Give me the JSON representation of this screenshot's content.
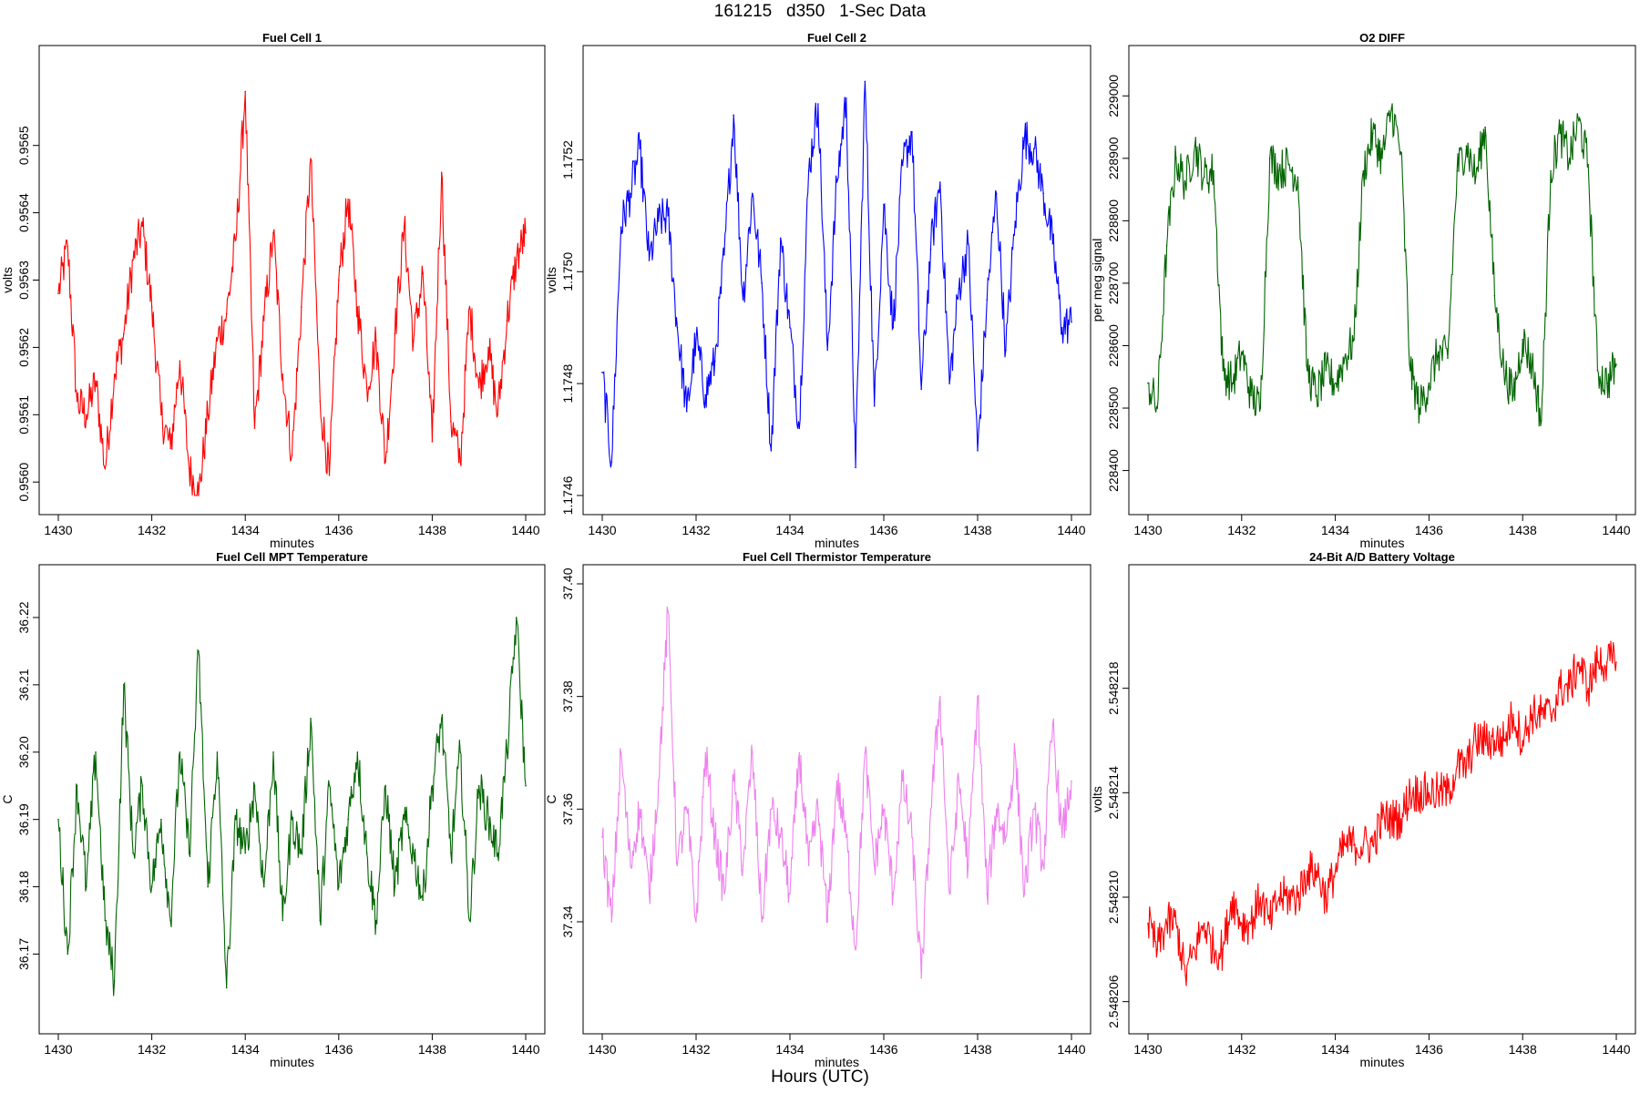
{
  "page": {
    "title": "161215   d350   1-Sec Data",
    "bottom_label": "Hours (UTC)"
  },
  "chart_data": [
    {
      "type": "line",
      "title": "Fuel Cell 1",
      "xlabel": "minutes",
      "ylabel": "volts",
      "color": "#ff0000",
      "xlim": [
        1430,
        1440
      ],
      "ylim": [
        0.95598,
        0.95662
      ],
      "xticks": [
        1430,
        1432,
        1434,
        1436,
        1438,
        1440
      ],
      "xtick_labels": [
        "1430",
        "1432",
        "1434",
        "1436",
        "1438",
        "1440"
      ],
      "yticks": [
        0.956,
        0.9561,
        0.9562,
        0.9563,
        0.9564,
        0.9565
      ],
      "ytick_labels": [
        "0.9560",
        "0.9561",
        "0.9562",
        "0.9563",
        "0.9564",
        "0.9565"
      ],
      "grid": false,
      "series": [
        {
          "x": [
            1430.0,
            1430.2,
            1430.4,
            1430.6,
            1430.8,
            1431.0,
            1431.2,
            1431.4,
            1431.6,
            1431.8,
            1432.0,
            1432.2,
            1432.4,
            1432.6,
            1432.8,
            1433.0,
            1433.2,
            1433.4,
            1433.6,
            1433.8,
            1434.0,
            1434.2,
            1434.4,
            1434.6,
            1434.8,
            1435.0,
            1435.2,
            1435.4,
            1435.6,
            1435.8,
            1436.0,
            1436.2,
            1436.4,
            1436.6,
            1436.8,
            1437.0,
            1437.2,
            1437.4,
            1437.6,
            1437.8,
            1438.0,
            1438.2,
            1438.4,
            1438.6,
            1438.8,
            1439.0,
            1439.2,
            1439.4,
            1439.6,
            1439.8,
            1440.0
          ],
          "values": [
            0.95628,
            0.95635,
            0.95612,
            0.9561,
            0.95615,
            0.95602,
            0.95616,
            0.95622,
            0.95633,
            0.95638,
            0.95626,
            0.9561,
            0.95605,
            0.95618,
            0.95602,
            0.95598,
            0.9561,
            0.95621,
            0.95625,
            0.95636,
            0.95658,
            0.95608,
            0.95624,
            0.95637,
            0.95616,
            0.95604,
            0.95626,
            0.95648,
            0.95612,
            0.95601,
            0.9563,
            0.95642,
            0.95626,
            0.95614,
            0.95621,
            0.95603,
            0.95622,
            0.95638,
            0.95621,
            0.95631,
            0.95606,
            0.95646,
            0.95609,
            0.95603,
            0.95626,
            0.95614,
            0.9562,
            0.9561,
            0.95624,
            0.95633,
            0.95637
          ]
        }
      ]
    },
    {
      "type": "line",
      "title": "Fuel Cell 2",
      "xlabel": "minutes",
      "ylabel": "volts",
      "color": "#0000ff",
      "xlim": [
        1430,
        1440
      ],
      "ylim": [
        1.1746,
        1.17537
      ],
      "xticks": [
        1430,
        1432,
        1434,
        1436,
        1438,
        1440
      ],
      "xtick_labels": [
        "1430",
        "1432",
        "1434",
        "1436",
        "1438",
        "1440"
      ],
      "yticks": [
        1.1746,
        1.1748,
        1.175,
        1.1752
      ],
      "ytick_labels": [
        "1.1746",
        "1.1748",
        "1.1750",
        "1.1752"
      ],
      "grid": false,
      "series": [
        {
          "x": [
            1430.0,
            1430.2,
            1430.4,
            1430.6,
            1430.8,
            1431.0,
            1431.2,
            1431.4,
            1431.6,
            1431.8,
            1432.0,
            1432.2,
            1432.4,
            1432.6,
            1432.8,
            1433.0,
            1433.2,
            1433.4,
            1433.6,
            1433.8,
            1434.0,
            1434.2,
            1434.4,
            1434.6,
            1434.8,
            1435.0,
            1435.2,
            1435.4,
            1435.6,
            1435.8,
            1436.0,
            1436.2,
            1436.4,
            1436.6,
            1436.8,
            1437.0,
            1437.2,
            1437.4,
            1437.6,
            1437.8,
            1438.0,
            1438.2,
            1438.4,
            1438.6,
            1438.8,
            1439.0,
            1439.2,
            1439.4,
            1439.6,
            1439.8,
            1440.0
          ],
          "values": [
            1.17482,
            1.17466,
            1.17508,
            1.17514,
            1.17522,
            1.17502,
            1.17509,
            1.1751,
            1.1749,
            1.17475,
            1.17488,
            1.17478,
            1.17484,
            1.17503,
            1.17528,
            1.17495,
            1.17514,
            1.17498,
            1.17468,
            1.17506,
            1.1749,
            1.17472,
            1.17518,
            1.1753,
            1.17486,
            1.17516,
            1.17531,
            1.17465,
            1.17534,
            1.17476,
            1.17512,
            1.1749,
            1.17519,
            1.17525,
            1.17479,
            1.17504,
            1.17516,
            1.1748,
            1.17497,
            1.17505,
            1.17468,
            1.17495,
            1.17514,
            1.17486,
            1.17509,
            1.17524,
            1.17522,
            1.17514,
            1.17505,
            1.1749,
            1.17491
          ]
        }
      ]
    },
    {
      "type": "line",
      "title": "O2 DIFF",
      "xlabel": "minutes",
      "ylabel": "per meg signal",
      "color": "#006400",
      "xlim": [
        1430,
        1440
      ],
      "ylim": [
        228360,
        229050
      ],
      "xticks": [
        1430,
        1432,
        1434,
        1436,
        1438,
        1440
      ],
      "xtick_labels": [
        "1430",
        "1432",
        "1434",
        "1436",
        "1438",
        "1440"
      ],
      "yticks": [
        228400,
        228500,
        228600,
        228700,
        228800,
        228900,
        229000
      ],
      "ytick_labels": [
        "228400",
        "228500",
        "228600",
        "228700",
        "228800",
        "228900",
        "229000"
      ],
      "grid": false,
      "series": [
        {
          "x": [
            1430.0,
            1430.2,
            1430.4,
            1430.6,
            1430.8,
            1431.0,
            1431.2,
            1431.4,
            1431.6,
            1431.8,
            1432.0,
            1432.2,
            1432.4,
            1432.6,
            1432.8,
            1433.0,
            1433.2,
            1433.4,
            1433.6,
            1433.8,
            1434.0,
            1434.2,
            1434.4,
            1434.6,
            1434.8,
            1435.0,
            1435.2,
            1435.4,
            1435.6,
            1435.8,
            1436.0,
            1436.2,
            1436.4,
            1436.6,
            1436.8,
            1437.0,
            1437.2,
            1437.4,
            1437.6,
            1437.8,
            1438.0,
            1438.2,
            1438.4,
            1438.6,
            1438.8,
            1439.0,
            1439.2,
            1439.4,
            1439.6,
            1439.8,
            1440.0
          ],
          "values": [
            228540,
            228500,
            228760,
            228900,
            228860,
            228920,
            228870,
            228880,
            228560,
            228540,
            228590,
            228520,
            228500,
            228900,
            228880,
            228890,
            228870,
            228560,
            228520,
            228560,
            228540,
            228580,
            228610,
            228880,
            228940,
            228900,
            228980,
            228910,
            228560,
            228500,
            228540,
            228590,
            228580,
            228880,
            228920,
            228870,
            228950,
            228680,
            228560,
            228520,
            228610,
            228570,
            228480,
            228880,
            228940,
            228900,
            228960,
            228890,
            228560,
            228540,
            228570
          ]
        }
      ]
    },
    {
      "type": "line",
      "title": "Fuel Cell MPT Temperature",
      "xlabel": "minutes",
      "ylabel": "C",
      "color": "#006400",
      "xlim": [
        1430,
        1440
      ],
      "ylim": [
        36.161,
        36.225
      ],
      "xticks": [
        1430,
        1432,
        1434,
        1436,
        1438,
        1440
      ],
      "xtick_labels": [
        "1430",
        "1432",
        "1434",
        "1436",
        "1438",
        "1440"
      ],
      "yticks": [
        36.17,
        36.18,
        36.19,
        36.2,
        36.21,
        36.22
      ],
      "ytick_labels": [
        "36.17",
        "36.18",
        "36.19",
        "36.20",
        "36.21",
        "36.22"
      ],
      "grid": false,
      "series": [
        {
          "x": [
            1430.0,
            1430.2,
            1430.4,
            1430.6,
            1430.8,
            1431.0,
            1431.2,
            1431.4,
            1431.6,
            1431.8,
            1432.0,
            1432.2,
            1432.4,
            1432.6,
            1432.8,
            1433.0,
            1433.2,
            1433.4,
            1433.6,
            1433.8,
            1434.0,
            1434.2,
            1434.4,
            1434.6,
            1434.8,
            1435.0,
            1435.2,
            1435.4,
            1435.6,
            1435.8,
            1436.0,
            1436.2,
            1436.4,
            1436.6,
            1436.8,
            1437.0,
            1437.2,
            1437.4,
            1437.6,
            1437.8,
            1438.0,
            1438.2,
            1438.4,
            1438.6,
            1438.8,
            1439.0,
            1439.2,
            1439.4,
            1439.6,
            1439.8,
            1440.0
          ],
          "values": [
            36.19,
            36.17,
            36.195,
            36.18,
            36.2,
            36.175,
            36.166,
            36.21,
            36.185,
            36.195,
            36.18,
            36.19,
            36.175,
            36.2,
            36.185,
            36.215,
            36.18,
            36.2,
            36.165,
            36.19,
            36.185,
            36.195,
            36.18,
            36.2,
            36.175,
            36.19,
            36.185,
            36.205,
            36.175,
            36.195,
            36.18,
            36.19,
            36.2,
            36.185,
            36.175,
            36.195,
            36.18,
            36.19,
            36.185,
            36.178,
            36.195,
            36.205,
            36.185,
            36.2,
            36.175,
            36.195,
            36.19,
            36.185,
            36.2,
            36.22,
            36.195
          ]
        }
      ]
    },
    {
      "type": "line",
      "title": "Fuel Cell Thermistor Temperature",
      "xlabel": "minutes",
      "ylabel": "C",
      "color": "#ee82ee",
      "xlim": [
        1430,
        1440
      ],
      "ylim": [
        37.3235,
        37.4
      ],
      "xticks": [
        1430,
        1432,
        1434,
        1436,
        1438,
        1440
      ],
      "xtick_labels": [
        "1430",
        "1432",
        "1434",
        "1436",
        "1438",
        "1440"
      ],
      "yticks": [
        37.34,
        37.36,
        37.38,
        37.4
      ],
      "ytick_labels": [
        "37.34",
        "37.36",
        "37.38",
        "37.40"
      ],
      "grid": false,
      "series": [
        {
          "x": [
            1430.0,
            1430.2,
            1430.4,
            1430.6,
            1430.8,
            1431.0,
            1431.2,
            1431.4,
            1431.6,
            1431.8,
            1432.0,
            1432.2,
            1432.4,
            1432.6,
            1432.8,
            1433.0,
            1433.2,
            1433.4,
            1433.6,
            1433.8,
            1434.0,
            1434.2,
            1434.4,
            1434.6,
            1434.8,
            1435.0,
            1435.2,
            1435.4,
            1435.6,
            1435.8,
            1436.0,
            1436.2,
            1436.4,
            1436.6,
            1436.8,
            1437.0,
            1437.2,
            1437.4,
            1437.6,
            1437.8,
            1438.0,
            1438.2,
            1438.4,
            1438.6,
            1438.8,
            1439.0,
            1439.2,
            1439.4,
            1439.6,
            1439.8,
            1440.0
          ],
          "values": [
            37.355,
            37.34,
            37.37,
            37.35,
            37.36,
            37.345,
            37.365,
            37.395,
            37.35,
            37.36,
            37.34,
            37.37,
            37.355,
            37.345,
            37.365,
            37.35,
            37.37,
            37.34,
            37.36,
            37.355,
            37.345,
            37.37,
            37.35,
            37.36,
            37.34,
            37.365,
            37.355,
            37.335,
            37.37,
            37.35,
            37.36,
            37.345,
            37.365,
            37.355,
            37.33,
            37.36,
            37.38,
            37.345,
            37.365,
            37.35,
            37.38,
            37.345,
            37.36,
            37.355,
            37.37,
            37.345,
            37.36,
            37.35,
            37.375,
            37.355,
            37.365
          ]
        }
      ]
    },
    {
      "type": "line",
      "title": "24-Bit A/D Battery Voltage",
      "xlabel": "minutes",
      "ylabel": "volts",
      "color": "#ff0000",
      "xlim": [
        1430,
        1440
      ],
      "ylim": [
        2.5482055,
        2.548222
      ],
      "xticks": [
        1430,
        1432,
        1434,
        1436,
        1438,
        1440
      ],
      "xtick_labels": [
        "1430",
        "1432",
        "1434",
        "1436",
        "1438",
        "1440"
      ],
      "yticks": [
        2.548206,
        2.54821,
        2.548214,
        2.548218
      ],
      "ytick_labels": [
        "2.548206",
        "2.548210",
        "2.548214",
        "2.548218"
      ],
      "grid": false,
      "series": [
        {
          "x": [
            1430.0,
            1430.2,
            1430.4,
            1430.6,
            1430.8,
            1431.0,
            1431.2,
            1431.4,
            1431.6,
            1431.8,
            1432.0,
            1432.2,
            1432.4,
            1432.6,
            1432.8,
            1433.0,
            1433.2,
            1433.4,
            1433.6,
            1433.8,
            1434.0,
            1434.2,
            1434.4,
            1434.6,
            1434.8,
            1435.0,
            1435.2,
            1435.4,
            1435.6,
            1435.8,
            1436.0,
            1436.2,
            1436.4,
            1436.6,
            1436.8,
            1437.0,
            1437.2,
            1437.4,
            1437.6,
            1437.8,
            1438.0,
            1438.2,
            1438.4,
            1438.6,
            1438.8,
            1439.0,
            1439.2,
            1439.4,
            1439.6,
            1439.8,
            1440.0
          ],
          "values": [
            2.548209,
            2.548208,
            2.548209,
            2.548209,
            2.548207,
            2.548208,
            2.548209,
            2.548208,
            2.548208,
            2.54821,
            2.548209,
            2.548209,
            2.54821,
            2.548209,
            2.54821,
            2.54821,
            2.54821,
            2.548211,
            2.548211,
            2.54821,
            2.548211,
            2.548212,
            2.548212,
            2.548212,
            2.548212,
            2.548213,
            2.548213,
            2.548213,
            2.548214,
            2.548214,
            2.548214,
            2.548214,
            2.548214,
            2.548215,
            2.548215,
            2.548216,
            2.548216,
            2.548216,
            2.548216,
            2.548217,
            2.548216,
            2.548217,
            2.548217,
            2.548217,
            2.548218,
            2.548218,
            2.548219,
            2.548218,
            2.548219,
            2.548219,
            2.548219
          ]
        }
      ]
    }
  ]
}
